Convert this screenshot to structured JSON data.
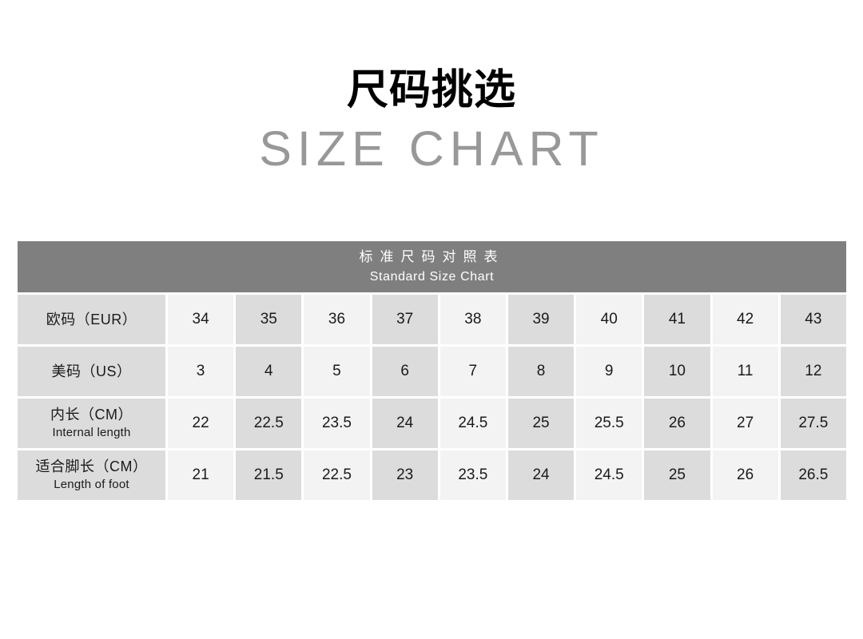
{
  "page": {
    "title_cn": "尺码挑选",
    "title_en": "SIZE CHART"
  },
  "table_header": {
    "line_cn": "标准尺码对照表",
    "line_en": "Standard Size Chart"
  },
  "chart_data": {
    "type": "table",
    "title": "尺码挑选",
    "subtitle": "SIZE CHART",
    "header_cn": "标准尺码对照表",
    "header_en": "Standard Size Chart",
    "rows": [
      {
        "id": "eur",
        "label_cn": "欧码（EUR）",
        "label_en": "",
        "values": [
          34,
          35,
          36,
          37,
          38,
          39,
          40,
          41,
          42,
          43
        ]
      },
      {
        "id": "us",
        "label_cn": "美码（US）",
        "label_en": "",
        "values": [
          3,
          4,
          5,
          6,
          7,
          8,
          9,
          10,
          11,
          12
        ]
      },
      {
        "id": "internal-length",
        "label_cn": "内长（CM）",
        "label_en": "Internal length",
        "values": [
          22,
          22.5,
          23.5,
          24,
          24.5,
          25,
          25.5,
          26,
          27,
          27.5
        ]
      },
      {
        "id": "foot-length",
        "label_cn": "适合脚长（CM）",
        "label_en": "Length of foot",
        "values": [
          21,
          21.5,
          22.5,
          23,
          23.5,
          24,
          24.5,
          25,
          26,
          26.5
        ]
      }
    ]
  },
  "colors": {
    "header_bg": "#7f7f7f",
    "header_text": "#ffffff",
    "label_cell_bg": "#dcdcdc",
    "cell_bg_light": "#f2f3f2",
    "cell_bg_dark": "#dcdcdc",
    "gap": "#ffffff",
    "body_text": "#1a1a1a",
    "subtitle_text": "#989898",
    "title_text": "#000000"
  }
}
